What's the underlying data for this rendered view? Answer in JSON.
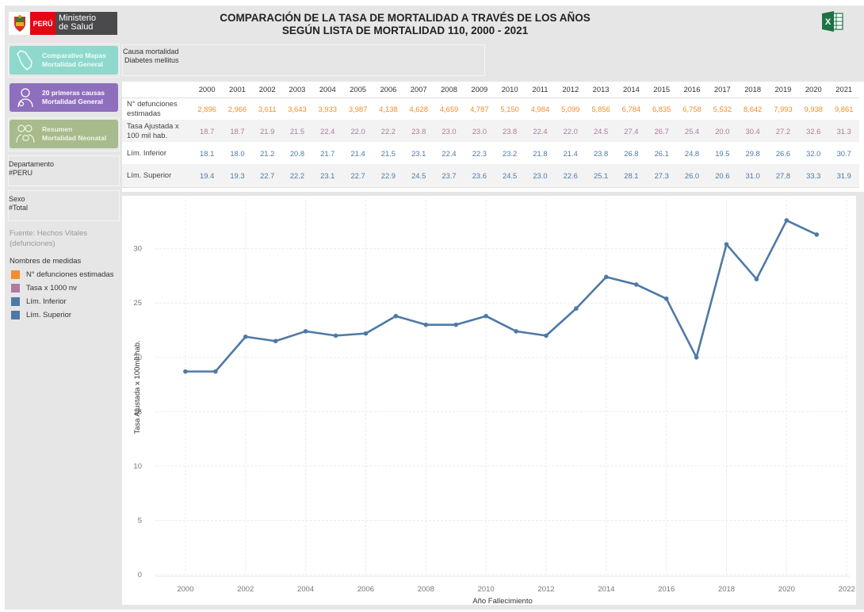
{
  "header": {
    "logo": {
      "country": "PERÚ",
      "ministry_line1": "Ministerio",
      "ministry_line2": "de Salud"
    },
    "title_line1": "COMPARACIÓN DE LA TASA DE MORTALIDAD A TRAVÉS DE LOS AÑOS",
    "title_line2": "SEGÚN LISTA DE MORTALIDAD 110, 2000 - 2021",
    "export_icon": "excel-icon"
  },
  "sidebar": {
    "nav": [
      {
        "line1": "Comparativo Mapas",
        "line2": "Mortalidad General",
        "icon": "peru-map-icon",
        "color": "#8fd8cc"
      },
      {
        "line1": "20 primeras causas",
        "line2": "Mortalidad General",
        "icon": "doctor-icon",
        "color": "#8e6fbd"
      },
      {
        "line1": "Resumen",
        "line2": "Mortalidad Neonatal",
        "icon": "family-icon",
        "color": "#a7bb8c"
      }
    ],
    "filters": {
      "departamento": {
        "label": "Departamento",
        "value": "#PERU"
      },
      "sexo": {
        "label": "Sexo",
        "value": "#Total"
      }
    },
    "fuente": "Fuente: Hechos Vitales (defunciones)",
    "legend": {
      "title": "Nombres de medidas",
      "items": [
        {
          "label": "N° defunciones estimadas",
          "color": "#f28e2b"
        },
        {
          "label": "Tasa x 1000 nv",
          "color": "#b07aa1"
        },
        {
          "label": "Lím. Inferior",
          "color": "#4e79a7"
        },
        {
          "label": "Lím. Superior",
          "color": "#4e79a7"
        }
      ]
    }
  },
  "causa": {
    "label": "Causa mortalidad",
    "value": "Diabetes mellitus"
  },
  "table": {
    "years": [
      "2000",
      "2001",
      "2002",
      "2003",
      "2004",
      "2005",
      "2006",
      "2007",
      "2008",
      "2009",
      "2010",
      "2011",
      "2012",
      "2013",
      "2014",
      "2015",
      "2016",
      "2017",
      "2018",
      "2019",
      "2020",
      "2021"
    ],
    "rows": [
      {
        "label_line1": "N° defunciones",
        "label_line2": "estimadas",
        "values": [
          "2,896",
          "2,966",
          "3,611",
          "3,643",
          "3,933",
          "3,987",
          "4,138",
          "4,628",
          "4,659",
          "4,787",
          "5,150",
          "4,984",
          "5,099",
          "5,856",
          "6,784",
          "6,835",
          "6,758",
          "5,532",
          "8,642",
          "7,993",
          "9,938",
          "9,861"
        ]
      },
      {
        "label_line1": "Tasa Ajustada x",
        "label_line2": "100 mil hab.",
        "values": [
          "18.7",
          "18.7",
          "21.9",
          "21.5",
          "22.4",
          "22.0",
          "22.2",
          "23.8",
          "23.0",
          "23.0",
          "23.8",
          "22.4",
          "22.0",
          "24.5",
          "27.4",
          "26.7",
          "25.4",
          "20.0",
          "30.4",
          "27.2",
          "32.6",
          "31.3"
        ]
      },
      {
        "label_line1": "Lím. Inferior",
        "label_line2": "",
        "values": [
          "18.1",
          "18.0",
          "21.2",
          "20.8",
          "21.7",
          "21.4",
          "21.5",
          "23.1",
          "22.4",
          "22.3",
          "23.2",
          "21.8",
          "21.4",
          "23.8",
          "26.8",
          "26.1",
          "24.8",
          "19.5",
          "29.8",
          "26.6",
          "32.0",
          "30.7"
        ]
      },
      {
        "label_line1": "Lím. Superior",
        "label_line2": "",
        "values": [
          "19.4",
          "19.3",
          "22.7",
          "22.2",
          "23.1",
          "22.7",
          "22.9",
          "24.5",
          "23.7",
          "23.6",
          "24.5",
          "23.0",
          "22.6",
          "25.1",
          "28.1",
          "27.3",
          "26.0",
          "20.6",
          "31.0",
          "27.8",
          "33.3",
          "31.9"
        ]
      }
    ]
  },
  "chart_data": {
    "type": "line",
    "title": "",
    "xlabel": "Año Fallecimiento",
    "ylabel": "Tasa Ajustada x 100mil hab.",
    "x": [
      2000,
      2001,
      2002,
      2003,
      2004,
      2005,
      2006,
      2007,
      2008,
      2009,
      2010,
      2011,
      2012,
      2013,
      2014,
      2015,
      2016,
      2017,
      2018,
      2019,
      2020,
      2021
    ],
    "series": [
      {
        "name": "Tasa Ajustada x 100 mil hab.",
        "color": "#4e79a7",
        "values": [
          18.7,
          18.7,
          21.9,
          21.5,
          22.4,
          22.0,
          22.2,
          23.8,
          23.0,
          23.0,
          23.8,
          22.4,
          22.0,
          24.5,
          27.4,
          26.7,
          25.4,
          20.0,
          30.4,
          27.2,
          32.6,
          31.3
        ]
      }
    ],
    "xlim": [
      1999,
      2022.1
    ],
    "ylim": [
      0,
      34.5
    ],
    "xticks": [
      2000,
      2002,
      2004,
      2006,
      2008,
      2010,
      2012,
      2014,
      2016,
      2018,
      2020,
      2022
    ],
    "yticks": [
      0,
      5,
      10,
      15,
      20,
      25,
      30
    ],
    "grid": true,
    "legend": "none"
  }
}
